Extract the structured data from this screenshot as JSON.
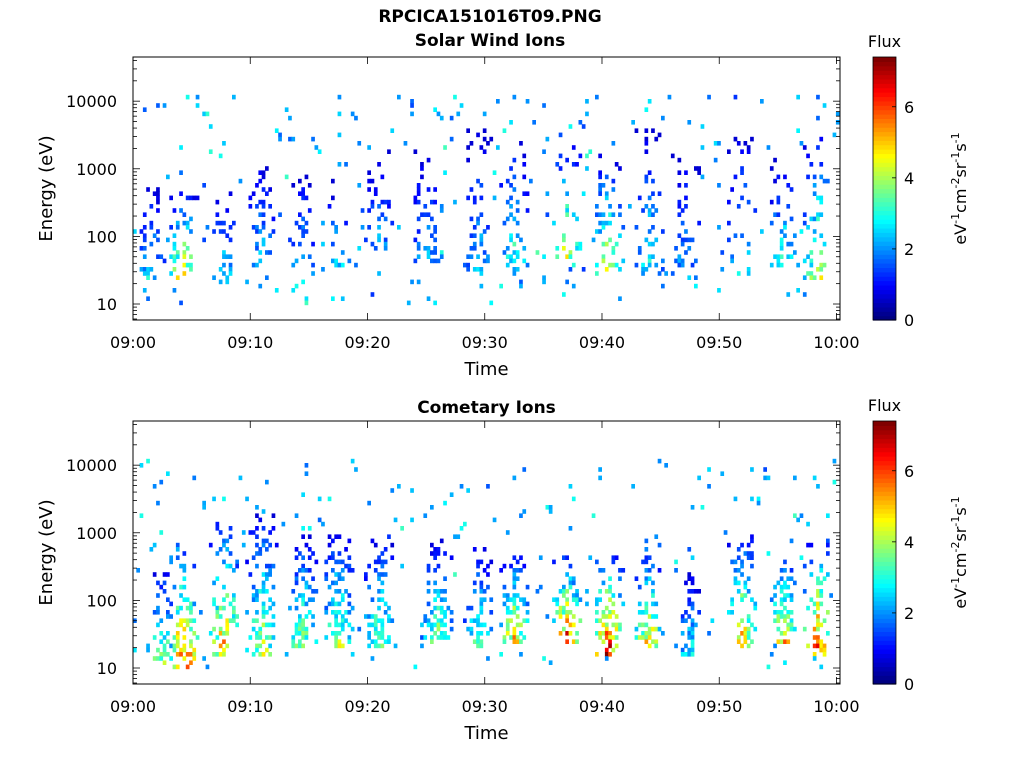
{
  "figure": {
    "title": "RPCICA151016T09.PNG"
  },
  "colorbar": {
    "label": "Flux",
    "units_base": "eV",
    "units_parts": [
      [
        "eV",
        "-1"
      ],
      [
        "cm",
        "-2"
      ],
      [
        "sr",
        "-1"
      ],
      [
        "s",
        "-1"
      ]
    ],
    "ticks": [
      "0",
      "2",
      "4",
      "6"
    ],
    "range": [
      0,
      7.4
    ],
    "colormap": "jet",
    "colors": [
      "#00007f",
      "#0000ff",
      "#007fff",
      "#00ffff",
      "#7fff7f",
      "#ffff00",
      "#ff7f00",
      "#ff0000",
      "#7f0000"
    ]
  },
  "chart_data": [
    {
      "type": "heatmap",
      "title": "Solar Wind Ions",
      "xlabel": "Time",
      "ylabel": "Energy (eV)",
      "x_ticks": [
        "09:00",
        "09:10",
        "09:20",
        "09:30",
        "09:40",
        "09:50",
        "10:00"
      ],
      "xlim_minutes": [
        0,
        60.3
      ],
      "y_ticks": [
        "10",
        "100",
        "1000",
        "10000"
      ],
      "ylim": [
        5.8,
        45000
      ],
      "yscale": "log",
      "grid": false,
      "activity_bursts": [
        {
          "time": 1.5,
          "emin": 25,
          "emax": 600,
          "peak_flux": 2.8
        },
        {
          "time": 4.3,
          "emin": 25,
          "emax": 500,
          "peak_flux": 4.8
        },
        {
          "time": 7.8,
          "emin": 20,
          "emax": 700,
          "peak_flux": 2.8
        },
        {
          "time": 11,
          "emin": 40,
          "emax": 1500,
          "peak_flux": 2.6
        },
        {
          "time": 14.5,
          "emin": 30,
          "emax": 1000,
          "peak_flux": 2.5
        },
        {
          "time": 17.5,
          "emin": 40,
          "emax": 800,
          "peak_flux": 2.6
        },
        {
          "time": 21,
          "emin": 60,
          "emax": 2000,
          "peak_flux": 2.4
        },
        {
          "time": 25,
          "emin": 40,
          "emax": 2500,
          "peak_flux": 2.4
        },
        {
          "time": 29.5,
          "emin": 30,
          "emax": 5000,
          "peak_flux": 2.5
        },
        {
          "time": 32.5,
          "emin": 40,
          "emax": 3000,
          "peak_flux": 3.2
        },
        {
          "time": 37,
          "emin": 40,
          "emax": 3000,
          "peak_flux": 4.6
        },
        {
          "time": 40.5,
          "emin": 30,
          "emax": 2000,
          "peak_flux": 4.2
        },
        {
          "time": 44,
          "emin": 30,
          "emax": 4000,
          "peak_flux": 3.0
        },
        {
          "time": 47,
          "emin": 25,
          "emax": 2000,
          "peak_flux": 2.4
        },
        {
          "time": 52,
          "emin": 30,
          "emax": 4000,
          "peak_flux": 2.8
        },
        {
          "time": 55.5,
          "emin": 40,
          "emax": 1500,
          "peak_flux": 3.2
        },
        {
          "time": 58.5,
          "emin": 25,
          "emax": 3000,
          "peak_flux": 4.4
        }
      ]
    },
    {
      "type": "heatmap",
      "title": "Cometary Ions",
      "xlabel": "Time",
      "ylabel": "Energy (eV)",
      "x_ticks": [
        "09:00",
        "09:10",
        "09:20",
        "09:30",
        "09:40",
        "09:50",
        "10:00"
      ],
      "xlim_minutes": [
        0,
        60.3
      ],
      "y_ticks": [
        "10",
        "100",
        "1000",
        "10000"
      ],
      "ylim": [
        5.8,
        45000
      ],
      "yscale": "log",
      "grid": false,
      "activity_bursts": [
        {
          "time": 2.5,
          "emin": 12,
          "emax": 300,
          "peak_flux": 4.2
        },
        {
          "time": 4.3,
          "emin": 10,
          "emax": 600,
          "peak_flux": 6.5
        },
        {
          "time": 7.8,
          "emin": 15,
          "emax": 1500,
          "peak_flux": 5.6
        },
        {
          "time": 11,
          "emin": 15,
          "emax": 2000,
          "peak_flux": 4.4
        },
        {
          "time": 14.5,
          "emin": 20,
          "emax": 1000,
          "peak_flux": 4.0
        },
        {
          "time": 17.5,
          "emin": 20,
          "emax": 1200,
          "peak_flux": 4.2
        },
        {
          "time": 21,
          "emin": 20,
          "emax": 900,
          "peak_flux": 4.0
        },
        {
          "time": 26,
          "emin": 25,
          "emax": 900,
          "peak_flux": 3.8
        },
        {
          "time": 29.5,
          "emin": 20,
          "emax": 700,
          "peak_flux": 3.6
        },
        {
          "time": 32.5,
          "emin": 25,
          "emax": 500,
          "peak_flux": 5.0
        },
        {
          "time": 37,
          "emin": 25,
          "emax": 500,
          "peak_flux": 6.2
        },
        {
          "time": 40.5,
          "emin": 15,
          "emax": 600,
          "peak_flux": 6.6
        },
        {
          "time": 44,
          "emin": 20,
          "emax": 600,
          "peak_flux": 5.2
        },
        {
          "time": 47.5,
          "emin": 15,
          "emax": 300,
          "peak_flux": 3.0
        },
        {
          "time": 52,
          "emin": 20,
          "emax": 1000,
          "peak_flux": 5.2
        },
        {
          "time": 55.5,
          "emin": 25,
          "emax": 600,
          "peak_flux": 5.0
        },
        {
          "time": 58.5,
          "emin": 15,
          "emax": 800,
          "peak_flux": 6.4
        }
      ]
    }
  ]
}
